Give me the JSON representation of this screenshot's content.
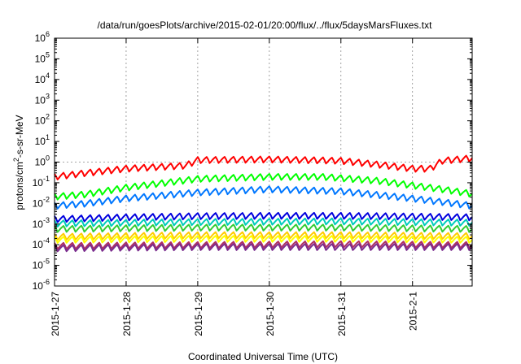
{
  "chart_data": {
    "type": "line",
    "title": "/data/run/goesPlots/archive/2015-02-01/20:00/flux/../flux/5daysMarsFluxes.txt",
    "xlabel": "Coordinated Universal Time (UTC)",
    "ylabel": {
      "base": "protons/cm",
      "exponent": "2",
      "rest": "-s-sr-MeV"
    },
    "y_scale": "log",
    "ylim_exponents": [
      -6,
      6
    ],
    "y_ticks": [
      {
        "base": "10",
        "exp": "-6"
      },
      {
        "base": "10",
        "exp": "-5"
      },
      {
        "base": "10",
        "exp": "-4"
      },
      {
        "base": "10",
        "exp": "-3"
      },
      {
        "base": "10",
        "exp": "-2"
      },
      {
        "base": "10",
        "exp": "-1"
      },
      {
        "base": "10",
        "exp": "0"
      },
      {
        "base": "10",
        "exp": "1"
      },
      {
        "base": "10",
        "exp": "2"
      },
      {
        "base": "10",
        "exp": "3"
      },
      {
        "base": "10",
        "exp": "4"
      },
      {
        "base": "10",
        "exp": "5"
      },
      {
        "base": "10",
        "exp": "6"
      }
    ],
    "x_ticks": [
      "2015-1-27",
      "2015-1-28",
      "2015-1-29",
      "2015-1-30",
      "2015-1-31",
      "2015-2-1"
    ],
    "x_range_days": [
      "2015-01-27",
      "2015-02-01 20:00"
    ],
    "grid": "dotted at each x tick and at y = 10^0",
    "legend": "none",
    "series": [
      {
        "color": "#ff0000",
        "sawtooth_period_hours": 3,
        "knots": [
          [
            0,
            0.2
          ],
          [
            10,
            0.3
          ],
          [
            24,
            0.5
          ],
          [
            44,
            0.7
          ],
          [
            48,
            1.3
          ],
          [
            72,
            1.4
          ],
          [
            96,
            1.2
          ],
          [
            108,
            0.8
          ],
          [
            120,
            0.5
          ],
          [
            126,
            0.5
          ],
          [
            130,
            1.2
          ],
          [
            140,
            1.6
          ]
        ]
      },
      {
        "color": "#00ff00",
        "sawtooth_period_hours": 3,
        "knots": [
          [
            0,
            0.022
          ],
          [
            10,
            0.028
          ],
          [
            24,
            0.06
          ],
          [
            48,
            0.16
          ],
          [
            72,
            0.2
          ],
          [
            90,
            0.2
          ],
          [
            108,
            0.13
          ],
          [
            130,
            0.05
          ],
          [
            140,
            0.03
          ]
        ]
      },
      {
        "color": "#0077ff",
        "sawtooth_period_hours": 3,
        "knots": [
          [
            0,
            0.008
          ],
          [
            10,
            0.01
          ],
          [
            24,
            0.018
          ],
          [
            48,
            0.035
          ],
          [
            72,
            0.05
          ],
          [
            96,
            0.04
          ],
          [
            120,
            0.018
          ],
          [
            140,
            0.008
          ]
        ]
      },
      {
        "color": "#0000dd",
        "sawtooth_period_hours": 3,
        "knots": [
          [
            0,
            0.0018
          ],
          [
            24,
            0.0022
          ],
          [
            48,
            0.0025
          ],
          [
            72,
            0.0026
          ],
          [
            96,
            0.0026
          ],
          [
            120,
            0.0024
          ],
          [
            140,
            0.0022
          ]
        ]
      },
      {
        "color": "#00ccbb",
        "sawtooth_period_hours": 3,
        "knots": [
          [
            0,
            0.0011
          ],
          [
            48,
            0.0013
          ],
          [
            96,
            0.0014
          ],
          [
            140,
            0.0012
          ]
        ]
      },
      {
        "color": "#33cc33",
        "sawtooth_period_hours": 3,
        "knots": [
          [
            0,
            0.0006
          ],
          [
            48,
            0.0007
          ],
          [
            96,
            0.0007
          ],
          [
            140,
            0.0006
          ]
        ]
      },
      {
        "color": "#ffcc00",
        "sawtooth_period_hours": 3,
        "knots": [
          [
            0,
            0.00025
          ],
          [
            48,
            0.0003
          ],
          [
            96,
            0.0003
          ],
          [
            140,
            0.00027
          ]
        ]
      },
      {
        "color": "#ffff00",
        "sawtooth_period_hours": 3,
        "knots": [
          [
            0,
            0.00018
          ],
          [
            48,
            0.0002
          ],
          [
            96,
            0.0002
          ],
          [
            140,
            0.00018
          ]
        ]
      },
      {
        "color": "#b03060",
        "sawtooth_period_hours": 3,
        "knots": [
          [
            0,
            9e-05
          ],
          [
            48,
            0.0001
          ],
          [
            96,
            0.00011
          ],
          [
            140,
            0.0001
          ]
        ]
      },
      {
        "color": "#7b2d8e",
        "sawtooth_period_hours": 3,
        "knots": [
          [
            0,
            7e-05
          ],
          [
            48,
            8e-05
          ],
          [
            96,
            8e-05
          ],
          [
            140,
            8e-05
          ]
        ]
      }
    ]
  }
}
